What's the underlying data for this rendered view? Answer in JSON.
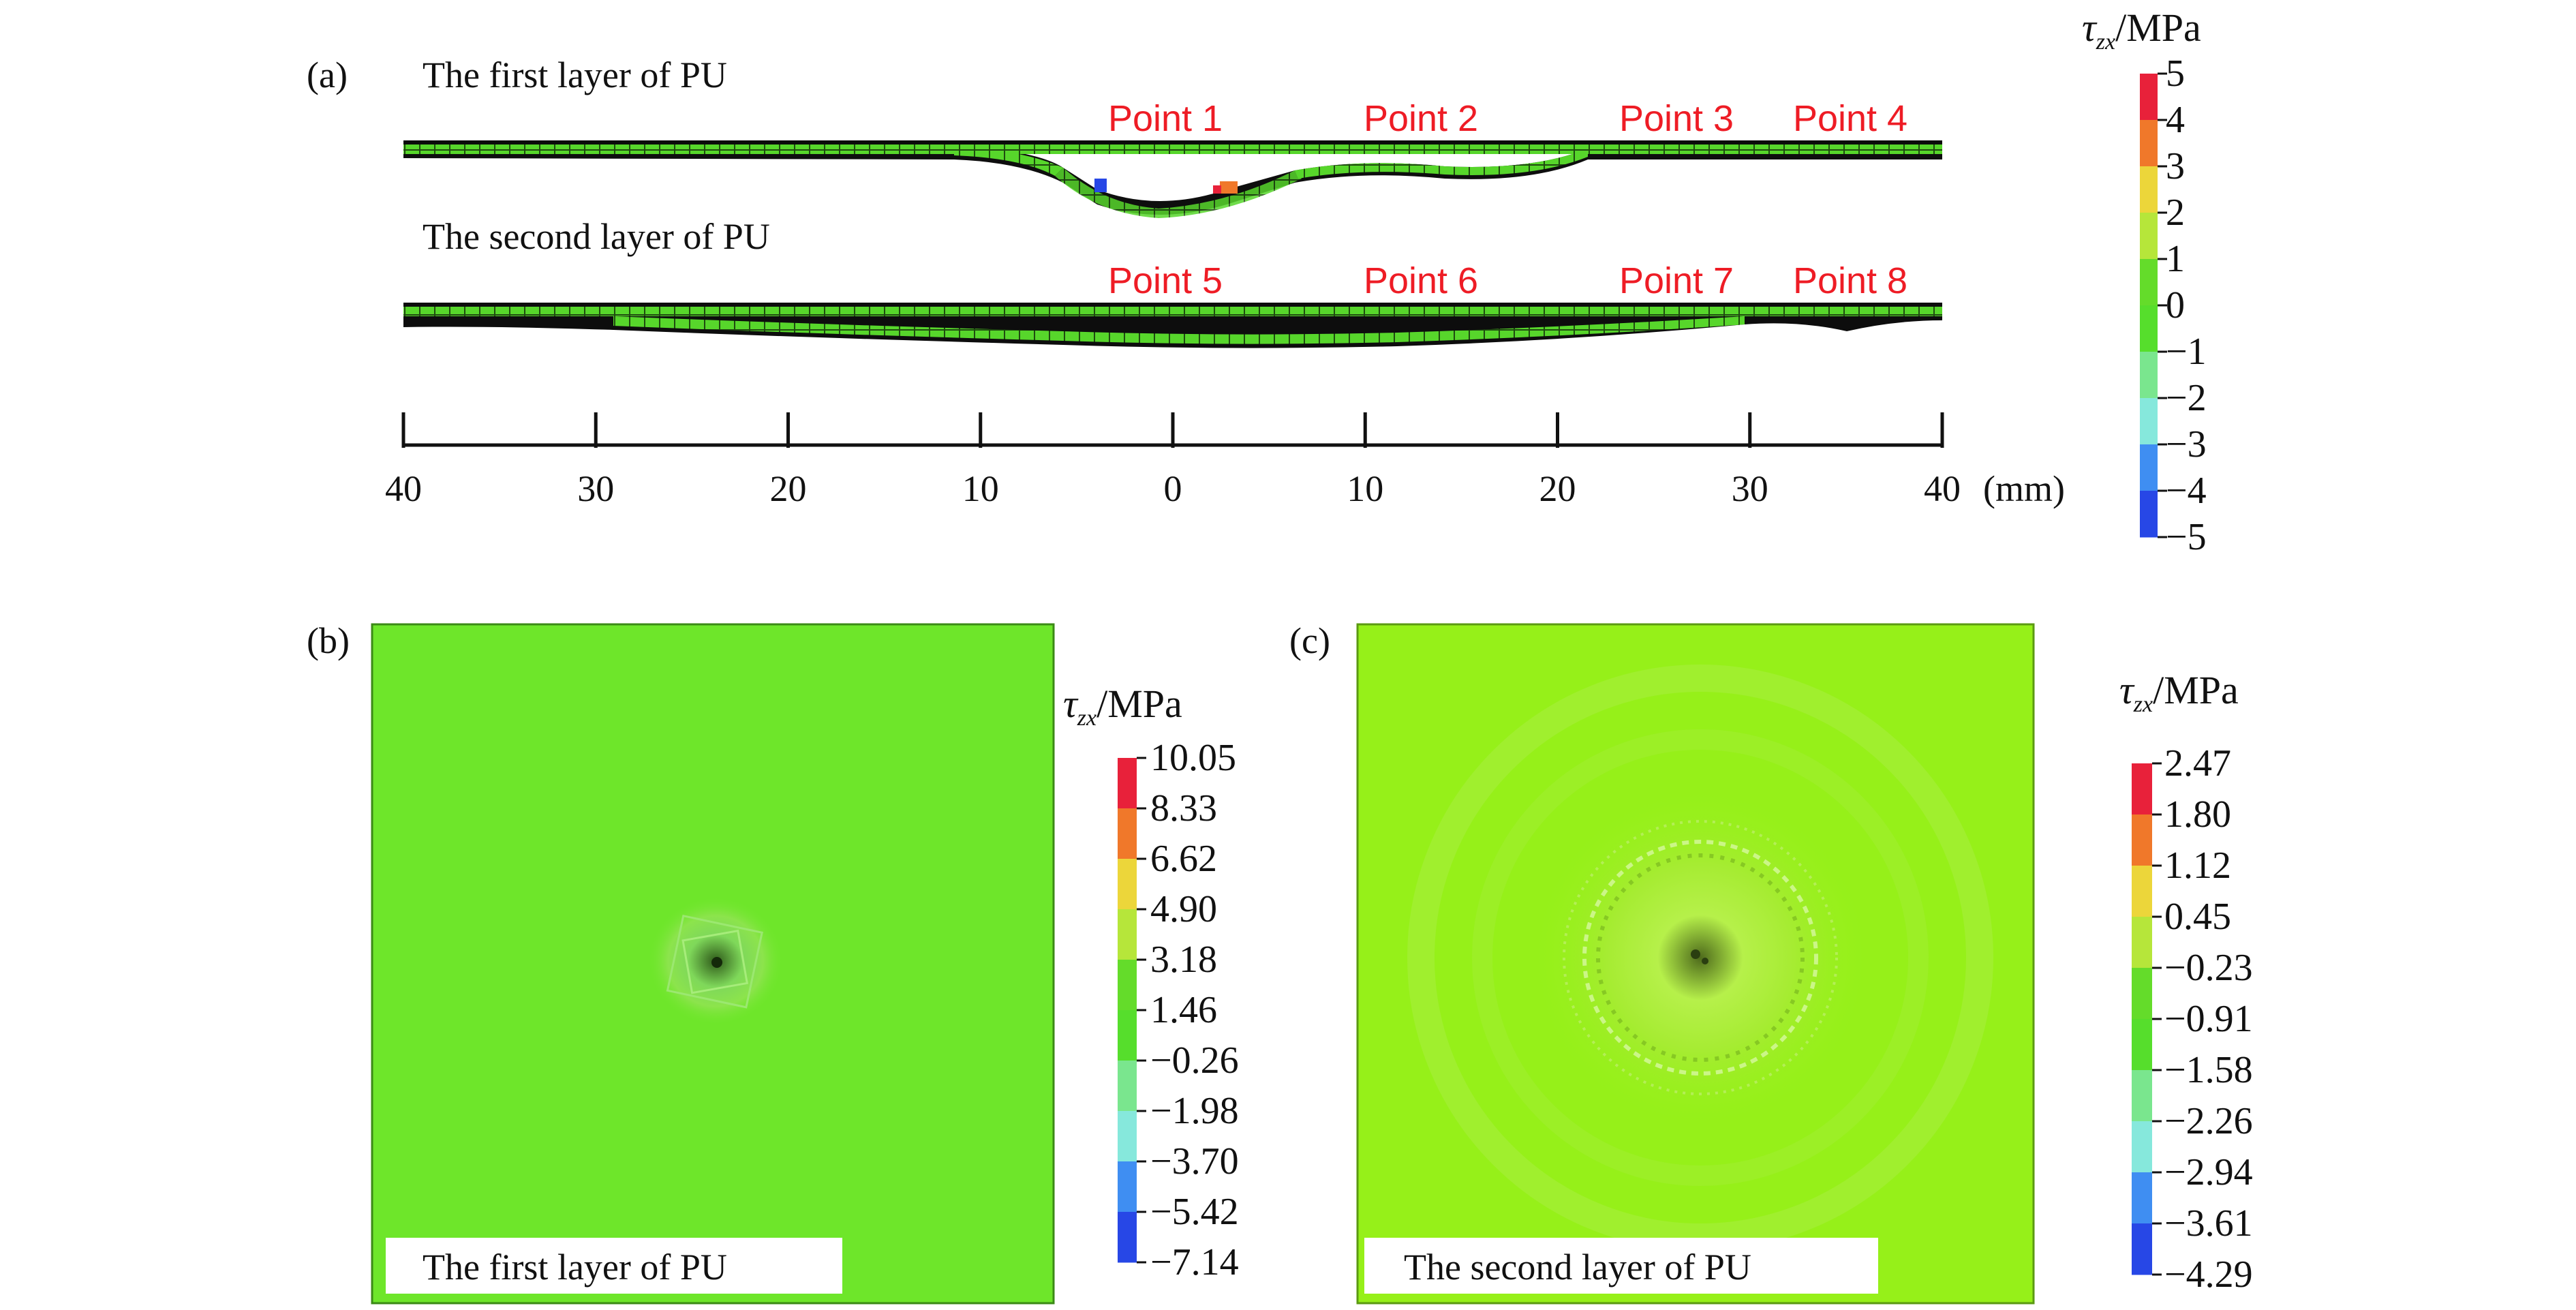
{
  "panel_a": {
    "label": "(a)",
    "layer1_title": "The first layer of PU",
    "layer2_title": "The second layer of PU",
    "points_layer1": [
      "Point 1",
      "Point 2",
      "Point 3",
      "Point 4"
    ],
    "points_layer2": [
      "Point 5",
      "Point 6",
      "Point 7",
      "Point 8"
    ],
    "axis_ticks": [
      "40",
      "30",
      "20",
      "10",
      "0",
      "10",
      "20",
      "30",
      "40"
    ],
    "axis_unit": "(mm)"
  },
  "panel_b": {
    "label": "(b)",
    "caption": "The first layer of PU",
    "field_color": "#6ee62a"
  },
  "panel_c": {
    "label": "(c)",
    "caption": "The second layer of PU",
    "field_color": "#96f019"
  },
  "colorbar_a": {
    "symbol": "τ",
    "subscript": "zx",
    "unit": "/MPa",
    "labels": [
      "5",
      "4",
      "3",
      "2",
      "1",
      "0",
      "−1",
      "−2",
      "−3",
      "−4",
      "−5"
    ]
  },
  "colorbar_b": {
    "symbol": "τ",
    "subscript": "zx",
    "unit": "/MPa",
    "labels": [
      "10.05",
      "8.33",
      "6.62",
      "4.90",
      "3.18",
      "1.46",
      "−0.26",
      "−1.98",
      "−3.70",
      "−5.42",
      "−7.14"
    ]
  },
  "colorbar_c": {
    "symbol": "τ",
    "subscript": "zx",
    "unit": "/MPa",
    "labels": [
      "2.47",
      "1.80",
      "1.12",
      "0.45",
      "−0.23",
      "−0.91",
      "−1.58",
      "−2.26",
      "−2.94",
      "−3.61",
      "−4.29"
    ]
  },
  "colormap": [
    "#e8213a",
    "#f0782a",
    "#ecd63a",
    "#b6e63a",
    "#64dc2a",
    "#56de2c",
    "#7ae68e",
    "#86e8dc",
    "#3f8ef2",
    "#2747e6"
  ]
}
